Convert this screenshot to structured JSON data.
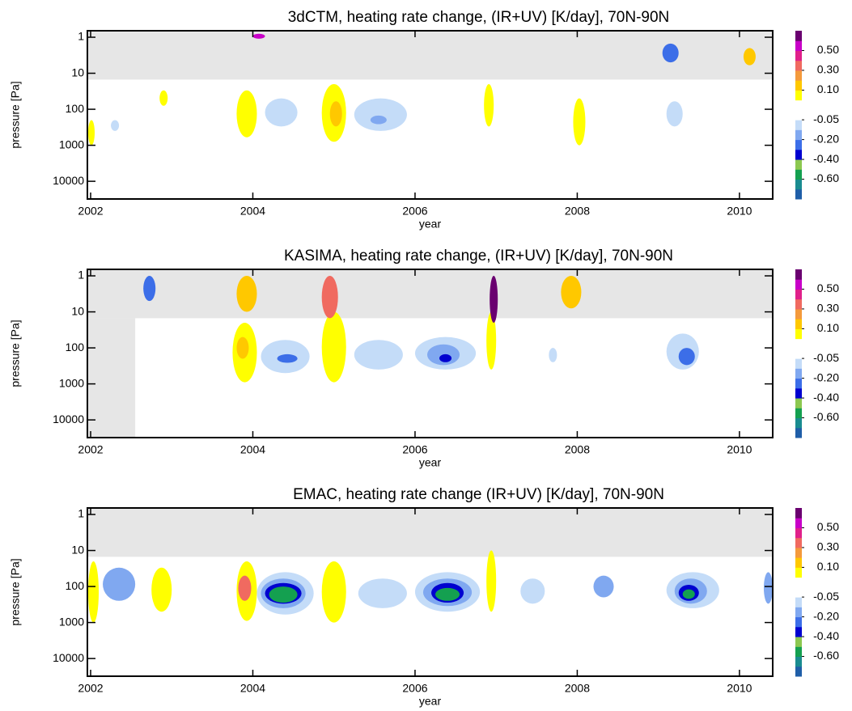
{
  "chart_data": [
    {
      "type": "contour",
      "title": "3dCTM, heating rate change, (IR+UV) [K/day], 70N-90N",
      "x_label": "year",
      "y_label": "pressure [Pa]",
      "xlim": [
        2001.96,
        2010.41
      ],
      "xticks": [
        2002,
        2004,
        2006,
        2008,
        2010
      ],
      "ylim": [
        0.66,
        31000
      ],
      "yticks": [
        1,
        10,
        100,
        1000,
        10000
      ],
      "log_y": true,
      "y_inverted": true,
      "masked": [
        {
          "x": [
            2001.96,
            2010.41
          ],
          "p": [
            0.66,
            15
          ]
        }
      ],
      "features": [
        {
          "x": [
            2001.97,
            2002.05
          ],
          "p": [
            200,
            1000
          ],
          "level": 0.07
        },
        {
          "x": [
            2002.85,
            2002.95
          ],
          "p": [
            30,
            80
          ],
          "level": 0.07
        },
        {
          "x": [
            2002.25,
            2002.35
          ],
          "p": [
            200,
            400
          ],
          "level": -0.07
        },
        {
          "x": [
            2003.8,
            2004.05
          ],
          "p": [
            30,
            600
          ],
          "level": 0.07
        },
        {
          "x": [
            2004.15,
            2004.55
          ],
          "p": [
            50,
            300
          ],
          "level": -0.07
        },
        {
          "x": [
            2004.85,
            2005.15
          ],
          "p": [
            20,
            800
          ],
          "level": 0.07
        },
        {
          "x": [
            2004.95,
            2005.1
          ],
          "p": [
            60,
            300
          ],
          "level": 0.15
        },
        {
          "x": [
            2005.25,
            2005.9
          ],
          "p": [
            50,
            400
          ],
          "level": -0.07
        },
        {
          "x": [
            2005.45,
            2005.65
          ],
          "p": [
            150,
            260
          ],
          "level": -0.15
        },
        {
          "x": [
            2006.85,
            2006.97
          ],
          "p": [
            20,
            300
          ],
          "level": 0.07
        },
        {
          "x": [
            2007.95,
            2008.1
          ],
          "p": [
            50,
            1000
          ],
          "level": 0.07
        },
        {
          "x": [
            2009.1,
            2009.3
          ],
          "p": [
            60,
            300
          ],
          "level": -0.07
        },
        {
          "x": [
            2004.0,
            2004.15
          ],
          "p": [
            0.8,
            1.1
          ],
          "level": 0.55
        },
        {
          "x": [
            2009.05,
            2009.25
          ],
          "p": [
            1.5,
            5
          ],
          "level": -0.25
        },
        {
          "x": [
            2010.05,
            2010.2
          ],
          "p": [
            2,
            6
          ],
          "level": 0.15
        }
      ],
      "colorbar": {
        "levels": [
          -0.8,
          -0.7,
          -0.6,
          -0.5,
          -0.4,
          -0.3,
          -0.2,
          -0.1,
          -0.05,
          0,
          0.05,
          0.1,
          0.2,
          0.3,
          0.4,
          0.5,
          0.6,
          0.7
        ],
        "colors": [
          "#1f5ea8",
          "#1a8c90",
          "#14a050",
          "#8cc850",
          "#0000d0",
          "#3c6ee8",
          "#80a8f0",
          "#c4dcf8",
          "#ffffff",
          "#ffffff",
          "#ffff00",
          "#ffc800",
          "#f49a3c",
          "#f06a60",
          "#e0208a",
          "#c800c8",
          "#6a0070"
        ],
        "ticks": [
          {
            "value": 0.5,
            "label": "0.50"
          },
          {
            "value": 0.3,
            "label": "0.30"
          },
          {
            "value": 0.1,
            "label": "0.10"
          },
          {
            "value": -0.05,
            "label": "-0.05"
          },
          {
            "value": -0.2,
            "label": "-0.20"
          },
          {
            "value": -0.4,
            "label": "-0.40"
          },
          {
            "value": -0.6,
            "label": "-0.60"
          }
        ]
      }
    },
    {
      "type": "contour",
      "title": "KASIMA, heating rate change, (IR+UV) [K/day], 70N-90N",
      "x_label": "year",
      "y_label": "pressure [Pa]",
      "xlim": [
        2001.96,
        2010.41
      ],
      "xticks": [
        2002,
        2004,
        2006,
        2008,
        2010
      ],
      "ylim": [
        0.66,
        31000
      ],
      "yticks": [
        1,
        10,
        100,
        1000,
        10000
      ],
      "log_y": true,
      "y_inverted": true,
      "masked": [
        {
          "x": [
            2001.96,
            2010.41
          ],
          "p": [
            0.66,
            15
          ]
        },
        {
          "x": [
            2001.96,
            2002.55
          ],
          "p": [
            15,
            31000
          ]
        }
      ],
      "features": [
        {
          "x": [
            2003.75,
            2004.05
          ],
          "p": [
            20,
            900
          ],
          "level": 0.07
        },
        {
          "x": [
            2003.8,
            2003.95
          ],
          "p": [
            50,
            200
          ],
          "level": 0.15
        },
        {
          "x": [
            2004.1,
            2004.7
          ],
          "p": [
            60,
            500
          ],
          "level": -0.07
        },
        {
          "x": [
            2004.3,
            2004.55
          ],
          "p": [
            150,
            260
          ],
          "level": -0.25
        },
        {
          "x": [
            2004.85,
            2005.15
          ],
          "p": [
            10,
            900
          ],
          "level": 0.07
        },
        {
          "x": [
            2005.25,
            2005.85
          ],
          "p": [
            60,
            400
          ],
          "level": -0.07
        },
        {
          "x": [
            2006.0,
            2006.75
          ],
          "p": [
            50,
            400
          ],
          "level": -0.07
        },
        {
          "x": [
            2006.15,
            2006.55
          ],
          "p": [
            80,
            300
          ],
          "level": -0.15
        },
        {
          "x": [
            2006.3,
            2006.45
          ],
          "p": [
            150,
            250
          ],
          "level": -0.35
        },
        {
          "x": [
            2006.88,
            2007.0
          ],
          "p": [
            10,
            400
          ],
          "level": 0.07
        },
        {
          "x": [
            2007.65,
            2007.75
          ],
          "p": [
            100,
            250
          ],
          "level": -0.07
        },
        {
          "x": [
            2009.1,
            2009.5
          ],
          "p": [
            40,
            400
          ],
          "level": -0.07
        },
        {
          "x": [
            2009.25,
            2009.45
          ],
          "p": [
            100,
            300
          ],
          "level": -0.25
        },
        {
          "x": [
            2002.65,
            2002.8
          ],
          "p": [
            1,
            5
          ],
          "level": -0.25
        },
        {
          "x": [
            2003.8,
            2004.05
          ],
          "p": [
            1,
            10
          ],
          "level": 0.15
        },
        {
          "x": [
            2004.85,
            2005.05
          ],
          "p": [
            1,
            15
          ],
          "level": 0.35
        },
        {
          "x": [
            2006.92,
            2007.02
          ],
          "p": [
            1,
            20
          ],
          "level": 0.65
        },
        {
          "x": [
            2007.8,
            2008.05
          ],
          "p": [
            1,
            8
          ],
          "level": 0.15
        }
      ],
      "colorbar": {
        "levels": [
          -0.8,
          -0.7,
          -0.6,
          -0.5,
          -0.4,
          -0.3,
          -0.2,
          -0.1,
          -0.05,
          0,
          0.05,
          0.1,
          0.2,
          0.3,
          0.4,
          0.5,
          0.6,
          0.7
        ],
        "colors": [
          "#1f5ea8",
          "#1a8c90",
          "#14a050",
          "#8cc850",
          "#0000d0",
          "#3c6ee8",
          "#80a8f0",
          "#c4dcf8",
          "#ffffff",
          "#ffffff",
          "#ffff00",
          "#ffc800",
          "#f49a3c",
          "#f06a60",
          "#e0208a",
          "#c800c8",
          "#6a0070"
        ],
        "ticks": [
          {
            "value": 0.5,
            "label": "0.50"
          },
          {
            "value": 0.3,
            "label": "0.30"
          },
          {
            "value": 0.1,
            "label": "0.10"
          },
          {
            "value": -0.05,
            "label": "-0.05"
          },
          {
            "value": -0.2,
            "label": "-0.20"
          },
          {
            "value": -0.4,
            "label": "-0.40"
          },
          {
            "value": -0.6,
            "label": "-0.60"
          }
        ]
      }
    },
    {
      "type": "contour",
      "title": "EMAC, heating rate change (IR+UV) [K/day], 70N-90N",
      "x_label": "year",
      "y_label": "pressure [Pa]",
      "xlim": [
        2001.96,
        2010.41
      ],
      "xticks": [
        2002,
        2004,
        2006,
        2008,
        2010
      ],
      "ylim": [
        0.66,
        31000
      ],
      "yticks": [
        1,
        10,
        100,
        1000,
        10000
      ],
      "log_y": true,
      "y_inverted": true,
      "masked": [
        {
          "x": [
            2001.96,
            2010.41
          ],
          "p": [
            0.66,
            15
          ]
        }
      ],
      "features": [
        {
          "x": [
            2001.97,
            2002.1
          ],
          "p": [
            20,
            1000
          ],
          "level": 0.07
        },
        {
          "x": [
            2002.15,
            2002.55
          ],
          "p": [
            30,
            250
          ],
          "level": -0.15
        },
        {
          "x": [
            2002.75,
            2003.0
          ],
          "p": [
            30,
            500
          ],
          "level": 0.07
        },
        {
          "x": [
            2003.8,
            2004.05
          ],
          "p": [
            20,
            900
          ],
          "level": 0.07
        },
        {
          "x": [
            2003.82,
            2003.98
          ],
          "p": [
            50,
            250
          ],
          "level": 0.35
        },
        {
          "x": [
            2004.05,
            2004.75
          ],
          "p": [
            40,
            600
          ],
          "level": -0.07
        },
        {
          "x": [
            2004.1,
            2004.65
          ],
          "p": [
            60,
            400
          ],
          "level": -0.15
        },
        {
          "x": [
            2004.15,
            2004.6
          ],
          "p": [
            80,
            300
          ],
          "level": -0.35
        },
        {
          "x": [
            2004.2,
            2004.55
          ],
          "p": [
            100,
            280
          ],
          "level": -0.55
        },
        {
          "x": [
            2004.85,
            2005.15
          ],
          "p": [
            20,
            1000
          ],
          "level": 0.07
        },
        {
          "x": [
            2005.3,
            2005.9
          ],
          "p": [
            60,
            400
          ],
          "level": -0.07
        },
        {
          "x": [
            2006.0,
            2006.8
          ],
          "p": [
            40,
            500
          ],
          "level": -0.07
        },
        {
          "x": [
            2006.1,
            2006.7
          ],
          "p": [
            60,
            350
          ],
          "level": -0.15
        },
        {
          "x": [
            2006.2,
            2006.6
          ],
          "p": [
            80,
            280
          ],
          "level": -0.35
        },
        {
          "x": [
            2006.25,
            2006.55
          ],
          "p": [
            110,
            250
          ],
          "level": -0.55
        },
        {
          "x": [
            2006.88,
            2007.0
          ],
          "p": [
            10,
            500
          ],
          "level": 0.07
        },
        {
          "x": [
            2007.3,
            2007.6
          ],
          "p": [
            60,
            300
          ],
          "level": -0.07
        },
        {
          "x": [
            2008.2,
            2008.45
          ],
          "p": [
            50,
            200
          ],
          "level": -0.15
        },
        {
          "x": [
            2009.1,
            2009.75
          ],
          "p": [
            40,
            400
          ],
          "level": -0.07
        },
        {
          "x": [
            2009.2,
            2009.6
          ],
          "p": [
            60,
            300
          ],
          "level": -0.15
        },
        {
          "x": [
            2009.25,
            2009.5
          ],
          "p": [
            90,
            250
          ],
          "level": -0.35
        },
        {
          "x": [
            2009.3,
            2009.45
          ],
          "p": [
            120,
            220
          ],
          "level": -0.55
        },
        {
          "x": [
            2010.3,
            2010.41
          ],
          "p": [
            40,
            300
          ],
          "level": -0.15
        }
      ],
      "colorbar": {
        "levels": [
          -0.8,
          -0.7,
          -0.6,
          -0.5,
          -0.4,
          -0.3,
          -0.2,
          -0.1,
          -0.05,
          0,
          0.05,
          0.1,
          0.2,
          0.3,
          0.4,
          0.5,
          0.6,
          0.7
        ],
        "colors": [
          "#1f5ea8",
          "#1a8c90",
          "#14a050",
          "#8cc850",
          "#0000d0",
          "#3c6ee8",
          "#80a8f0",
          "#c4dcf8",
          "#ffffff",
          "#ffffff",
          "#ffff00",
          "#ffc800",
          "#f49a3c",
          "#f06a60",
          "#e0208a",
          "#c800c8",
          "#6a0070"
        ],
        "ticks": [
          {
            "value": 0.5,
            "label": "0.50"
          },
          {
            "value": 0.3,
            "label": "0.30"
          },
          {
            "value": 0.1,
            "label": "0.10"
          },
          {
            "value": -0.05,
            "label": "-0.05"
          },
          {
            "value": -0.2,
            "label": "-0.20"
          },
          {
            "value": -0.4,
            "label": "-0.40"
          },
          {
            "value": -0.6,
            "label": "-0.60"
          }
        ]
      }
    }
  ]
}
